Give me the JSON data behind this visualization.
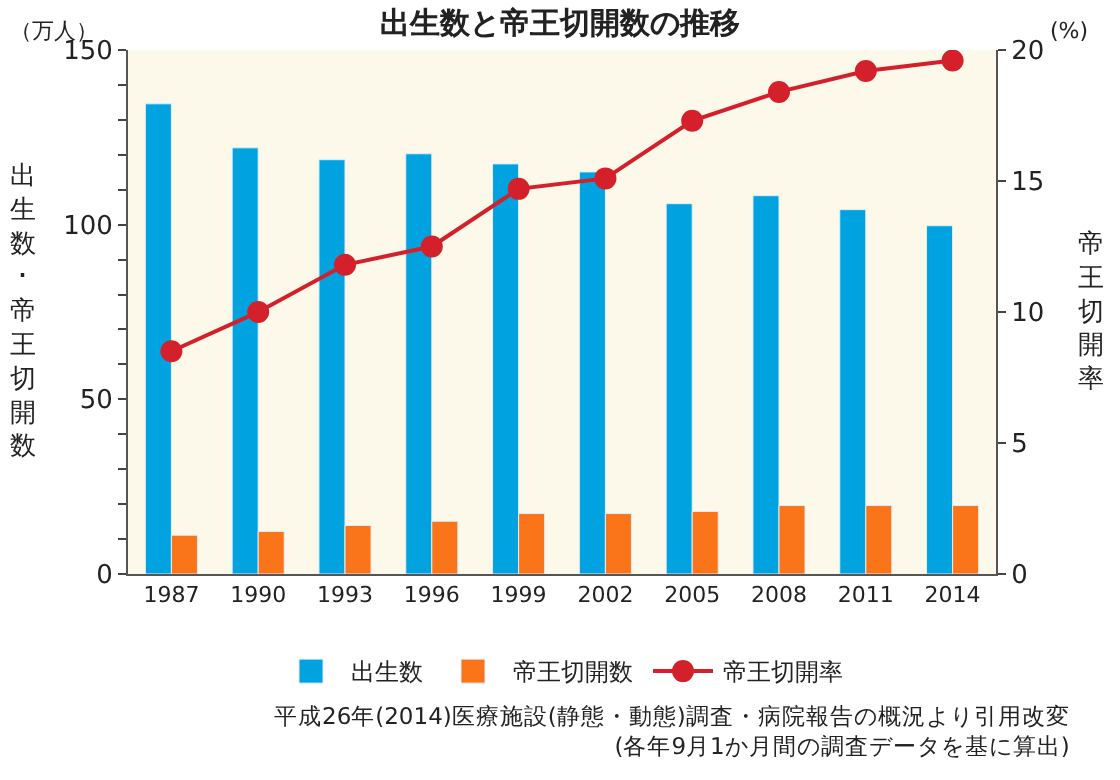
{
  "chart_data": {
    "type": "bar",
    "title": "出生数と帝王切開数の推移",
    "ylabel": "出生数･帝王切開数",
    "y2label": "帝王切開率",
    "categories": [
      "1987",
      "1990",
      "1993",
      "1996",
      "1999",
      "2002",
      "2005",
      "2008",
      "2011",
      "2014"
    ],
    "series": [
      {
        "name": "出生数",
        "color": "#00a3e0",
        "values": [
          134.6,
          122.0,
          118.6,
          120.3,
          117.4,
          115.1,
          106.0,
          108.3,
          104.3,
          99.7
        ]
      },
      {
        "name": "帝王切開数",
        "color": "#fa7519",
        "values": [
          11.1,
          12.2,
          13.9,
          15.1,
          17.3,
          17.3,
          17.9,
          19.6,
          19.6,
          19.6
        ]
      },
      {
        "name": "帝王切開率",
        "type": "line",
        "axis": "y2",
        "color": "#d4202a",
        "marker": "circle",
        "values": [
          8.5,
          10.0,
          11.8,
          12.5,
          14.7,
          15.1,
          17.3,
          18.4,
          19.2,
          19.6
        ]
      }
    ],
    "ylim": [
      0,
      150
    ],
    "yticks": [
      0,
      {
        "value": 10,
        "label": null
      },
      {
        "value": 20,
        "label": null
      },
      {
        "value": 30,
        "label": null
      },
      {
        "value": 40,
        "label": null
      },
      50,
      {
        "value": 60,
        "label": null
      },
      {
        "value": 70,
        "label": null
      },
      {
        "value": 80,
        "label": null
      },
      {
        "value": 90,
        "label": null
      },
      100,
      {
        "value": 110,
        "label": null
      },
      {
        "value": 120,
        "label": null
      },
      {
        "value": 130,
        "label": null
      },
      {
        "value": 140,
        "label": null
      },
      150
    ],
    "y2lim": [
      0,
      20
    ],
    "y2ticks": [
      0,
      5,
      10,
      15,
      20
    ],
    "legend": "bottom",
    "grid": false,
    "annotations": [
      "（万人）",
      "(%)",
      "平成26年(2014)医療施設(静態・動態)調査・病院報告の概況より引用改変\n(各年9月1か月間の調査データを基に算出)"
    ]
  }
}
